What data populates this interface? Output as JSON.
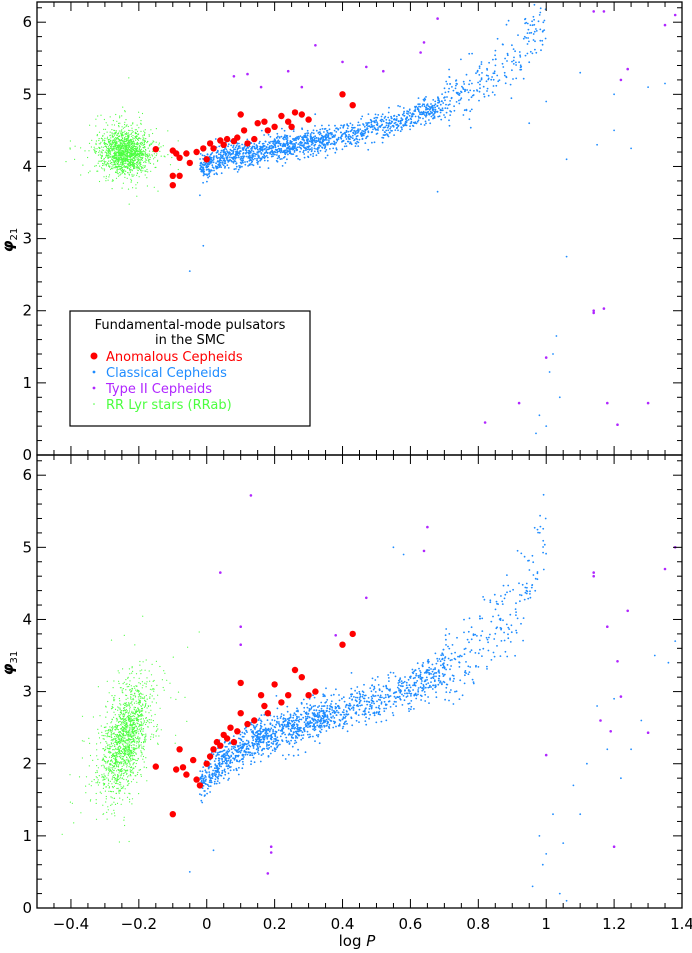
{
  "chart_data": {
    "type": "scatter",
    "xlabel": {
      "prefix": "log",
      "var": "P"
    },
    "xlim": [
      -0.5,
      1.4
    ],
    "xticks": [
      -0.4,
      -0.2,
      0,
      0.2,
      0.4,
      0.6,
      0.8,
      1,
      1.2,
      1.4
    ],
    "xtick_labels": [
      "−0.4",
      "−0.2",
      "0",
      "0.2",
      "0.4",
      "0.6",
      "0.8",
      "1",
      "1.2",
      "1.4"
    ],
    "panels": [
      {
        "ylabel": {
          "symbol": "φ",
          "sub": "21"
        },
        "ylim": [
          0,
          6.28
        ],
        "yticks": [
          0,
          1,
          2,
          3,
          4,
          5,
          6
        ],
        "ytick_labels": [
          "0",
          "1",
          "2",
          "3",
          "4",
          "5",
          "6"
        ]
      },
      {
        "ylabel": {
          "symbol": "φ",
          "sub": "31"
        },
        "ylim": [
          0,
          6.28
        ],
        "yticks": [
          0,
          1,
          2,
          3,
          4,
          5,
          6
        ],
        "ytick_labels": [
          "0",
          "1",
          "2",
          "3",
          "4",
          "5",
          "6"
        ]
      }
    ],
    "legend": {
      "title_line1": "Fundamental-mode pulsators",
      "title_line2": "in the SMC",
      "placement": "lower-left of top panel",
      "entries": [
        {
          "label": "Anomalous Cepheids",
          "color": "#ff0000",
          "marker": "large-dot"
        },
        {
          "label": "Classical Cepheids",
          "color": "#1e8cff",
          "marker": "small-dot"
        },
        {
          "label": "Type II Cepheids",
          "color": "#b026ff",
          "marker": "small-dot"
        },
        {
          "label": "RR Lyr stars (RRab)",
          "color": "#4cff40",
          "marker": "tiny-dot"
        }
      ]
    },
    "series": [
      {
        "name": "Anomalous Cepheids",
        "color": "#ff0000",
        "phi21": [
          [
            -0.1,
            4.22
          ],
          [
            -0.09,
            4.18
          ],
          [
            -0.08,
            4.12
          ],
          [
            -0.1,
            3.87
          ],
          [
            -0.1,
            3.74
          ],
          [
            -0.08,
            3.87
          ],
          [
            -0.06,
            4.18
          ],
          [
            -0.05,
            4.05
          ],
          [
            -0.03,
            4.2
          ],
          [
            -0.01,
            4.25
          ],
          [
            0,
            4.1
          ],
          [
            0.01,
            4.32
          ],
          [
            0.02,
            4.25
          ],
          [
            0.04,
            4.36
          ],
          [
            0.05,
            4.3
          ],
          [
            0.06,
            4.38
          ],
          [
            0.08,
            4.35
          ],
          [
            0.09,
            4.4
          ],
          [
            0.1,
            4.72
          ],
          [
            0.11,
            4.5
          ],
          [
            0.12,
            4.32
          ],
          [
            0.14,
            4.38
          ],
          [
            0.15,
            4.6
          ],
          [
            0.17,
            4.62
          ],
          [
            0.18,
            4.5
          ],
          [
            0.2,
            4.55
          ],
          [
            0.22,
            4.7
          ],
          [
            0.24,
            4.62
          ],
          [
            0.25,
            4.55
          ],
          [
            0.26,
            4.75
          ],
          [
            0.28,
            4.72
          ],
          [
            0.3,
            4.65
          ],
          [
            0.4,
            5.0
          ],
          [
            0.43,
            4.85
          ],
          [
            -0.15,
            4.24
          ]
        ],
        "phi31": [
          [
            -0.15,
            1.96
          ],
          [
            -0.1,
            1.3
          ],
          [
            -0.09,
            1.92
          ],
          [
            -0.08,
            2.2
          ],
          [
            -0.07,
            1.95
          ],
          [
            -0.06,
            1.85
          ],
          [
            -0.04,
            2.05
          ],
          [
            -0.03,
            1.78
          ],
          [
            -0.02,
            1.7
          ],
          [
            0,
            2.0
          ],
          [
            0.01,
            2.1
          ],
          [
            0.02,
            2.2
          ],
          [
            0.03,
            2.3
          ],
          [
            0.04,
            2.25
          ],
          [
            0.05,
            2.4
          ],
          [
            0.06,
            2.35
          ],
          [
            0.07,
            2.5
          ],
          [
            0.08,
            2.3
          ],
          [
            0.09,
            2.45
          ],
          [
            0.1,
            2.7
          ],
          [
            0.1,
            3.12
          ],
          [
            0.12,
            2.55
          ],
          [
            0.14,
            2.6
          ],
          [
            0.16,
            2.95
          ],
          [
            0.17,
            2.8
          ],
          [
            0.18,
            2.7
          ],
          [
            0.2,
            3.1
          ],
          [
            0.22,
            2.85
          ],
          [
            0.24,
            2.95
          ],
          [
            0.26,
            3.3
          ],
          [
            0.28,
            3.2
          ],
          [
            0.3,
            2.95
          ],
          [
            0.32,
            3.0
          ],
          [
            0.4,
            3.65
          ],
          [
            0.43,
            3.8
          ]
        ]
      },
      {
        "name": "Type II Cepheids",
        "color": "#b026ff",
        "phi21": [
          [
            0.12,
            5.28
          ],
          [
            0.08,
            5.25
          ],
          [
            0.16,
            5.1
          ],
          [
            0.24,
            5.32
          ],
          [
            0.28,
            5.1
          ],
          [
            0.32,
            5.68
          ],
          [
            0.4,
            5.45
          ],
          [
            0.47,
            5.38
          ],
          [
            0.52,
            5.32
          ],
          [
            0.63,
            5.58
          ],
          [
            0.64,
            5.72
          ],
          [
            0.68,
            6.05
          ],
          [
            0.82,
            0.45
          ],
          [
            0.92,
            0.72
          ],
          [
            1.0,
            1.35
          ],
          [
            1.14,
            6.15
          ],
          [
            1.17,
            6.15
          ],
          [
            1.14,
            1.97
          ],
          [
            1.17,
            2.03
          ],
          [
            1.14,
            2.0
          ],
          [
            1.18,
            0.72
          ],
          [
            1.21,
            0.42
          ],
          [
            1.22,
            5.2
          ],
          [
            1.24,
            5.35
          ],
          [
            1.3,
            0.72
          ],
          [
            1.35,
            5.96
          ],
          [
            1.38,
            6.1
          ]
        ],
        "phi31": [
          [
            0.04,
            4.65
          ],
          [
            0.13,
            5.72
          ],
          [
            0.1,
            3.9
          ],
          [
            0.1,
            3.65
          ],
          [
            0.19,
            0.85
          ],
          [
            0.18,
            0.48
          ],
          [
            0.19,
            0.77
          ],
          [
            0.38,
            3.78
          ],
          [
            0.47,
            4.3
          ],
          [
            0.65,
            5.28
          ],
          [
            0.64,
            4.95
          ],
          [
            1.0,
            2.12
          ],
          [
            1.14,
            4.6
          ],
          [
            1.14,
            4.65
          ],
          [
            1.16,
            2.6
          ],
          [
            1.18,
            3.9
          ],
          [
            1.19,
            2.45
          ],
          [
            1.21,
            3.42
          ],
          [
            1.22,
            2.93
          ],
          [
            1.24,
            4.12
          ],
          [
            1.3,
            2.43
          ],
          [
            1.35,
            4.7
          ],
          [
            1.38,
            5.0
          ],
          [
            1.2,
            0.85
          ]
        ]
      },
      {
        "name": "Classical Cepheids",
        "color": "#1e8cff",
        "phi21_trend": [
          [
            -0.02,
            3.95
          ],
          [
            0.05,
            4.15
          ],
          [
            0.15,
            4.2
          ],
          [
            0.3,
            4.32
          ],
          [
            0.5,
            4.52
          ],
          [
            0.7,
            4.85
          ],
          [
            0.9,
            5.5
          ],
          [
            1.0,
            6.1
          ]
        ],
        "phi21_scatter": 0.09,
        "phi21_extra": [
          [
            1.06,
            4.1
          ],
          [
            0.95,
            4.6
          ],
          [
            1.0,
            4.9
          ],
          [
            1.15,
            4.3
          ],
          [
            1.2,
            4.5
          ],
          [
            1.25,
            4.25
          ],
          [
            1.3,
            5.1
          ],
          [
            1.35,
            5.15
          ],
          [
            1.1,
            5.3
          ],
          [
            1.2,
            5.0
          ],
          [
            1.0,
            0.4
          ],
          [
            0.97,
            0.3
          ],
          [
            1.02,
            1.4
          ],
          [
            0.98,
            0.55
          ],
          [
            1.06,
            2.75
          ],
          [
            1.03,
            1.65
          ],
          [
            1.01,
            1.15
          ],
          [
            1.04,
            0.8
          ],
          [
            0.68,
            3.65
          ],
          [
            -0.05,
            2.55
          ],
          [
            -0.01,
            2.9
          ],
          [
            -0.02,
            3.6
          ]
        ],
        "phi31_trend": [
          [
            -0.05,
            1.6
          ],
          [
            0.05,
            2.05
          ],
          [
            0.15,
            2.35
          ],
          [
            0.3,
            2.6
          ],
          [
            0.5,
            2.85
          ],
          [
            0.7,
            3.3
          ],
          [
            0.9,
            4.0
          ],
          [
            1.0,
            5.2
          ]
        ],
        "phi31_scatter": 0.14,
        "phi31_extra": [
          [
            0.98,
            1.0
          ],
          [
            1.0,
            0.75
          ],
          [
            1.02,
            1.3
          ],
          [
            1.05,
            0.9
          ],
          [
            1.08,
            1.7
          ],
          [
            1.1,
            1.3
          ],
          [
            1.12,
            2.0
          ],
          [
            1.15,
            2.8
          ],
          [
            1.18,
            2.2
          ],
          [
            1.2,
            2.9
          ],
          [
            1.22,
            1.8
          ],
          [
            1.25,
            2.2
          ],
          [
            1.28,
            2.6
          ],
          [
            1.32,
            3.5
          ],
          [
            1.36,
            3.4
          ],
          [
            1.38,
            3.7
          ],
          [
            0.96,
            0.3
          ],
          [
            1.04,
            0.2
          ],
          [
            1.06,
            0.1
          ],
          [
            0.99,
            0.6
          ],
          [
            -0.05,
            0.5
          ],
          [
            0.02,
            0.8
          ],
          [
            0.55,
            5.0
          ],
          [
            0.58,
            4.9
          ]
        ]
      },
      {
        "name": "RR Lyr stars (RRab)",
        "color": "#4cff40",
        "phi21_center": [
          -0.24,
          4.2
        ],
        "phi21_spread": [
          0.035,
          0.15
        ],
        "phi31_center": [
          -0.24,
          2.35
        ],
        "phi31_spread": [
          0.035,
          0.32
        ],
        "phi31_tilt": 5.0
      }
    ]
  }
}
